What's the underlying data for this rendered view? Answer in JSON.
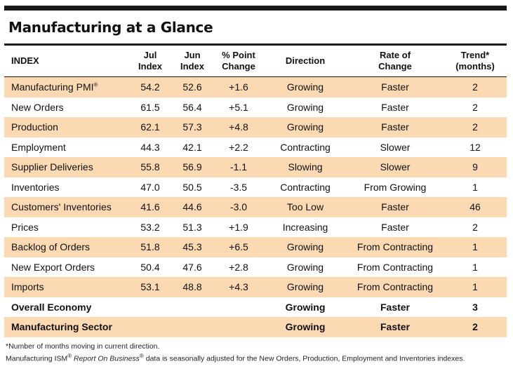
{
  "title": "Manufacturing at a Glance",
  "headers": {
    "index": "INDEX",
    "jul_1": "Jul",
    "jul_2": "Index",
    "jun_1": "Jun",
    "jun_2": "Index",
    "pct_1": "% Point",
    "pct_2": "Change",
    "direction": "Direction",
    "rate_1": "Rate of",
    "rate_2": "Change",
    "trend_1": "Trend*",
    "trend_2": "(months)"
  },
  "rows": [
    {
      "index": "Manufacturing PMI",
      "sup": "®",
      "jul": "54.2",
      "jun": "52.6",
      "change": "+1.6",
      "direction": "Growing",
      "rate": "Faster",
      "trend": "2"
    },
    {
      "index": "New Orders",
      "sup": "",
      "jul": "61.5",
      "jun": "56.4",
      "change": "+5.1",
      "direction": "Growing",
      "rate": "Faster",
      "trend": "2"
    },
    {
      "index": "Production",
      "sup": "",
      "jul": "62.1",
      "jun": "57.3",
      "change": "+4.8",
      "direction": "Growing",
      "rate": "Faster",
      "trend": "2"
    },
    {
      "index": "Employment",
      "sup": "",
      "jul": "44.3",
      "jun": "42.1",
      "change": "+2.2",
      "direction": "Contracting",
      "rate": "Slower",
      "trend": "12"
    },
    {
      "index": "Supplier Deliveries",
      "sup": "",
      "jul": "55.8",
      "jun": "56.9",
      "change": "-1.1",
      "direction": "Slowing",
      "rate": "Slower",
      "trend": "9"
    },
    {
      "index": "Inventories",
      "sup": "",
      "jul": "47.0",
      "jun": "50.5",
      "change": "-3.5",
      "direction": "Contracting",
      "rate": "From Growing",
      "trend": "1"
    },
    {
      "index": "Customers' Inventories",
      "sup": "",
      "jul": "41.6",
      "jun": "44.6",
      "change": "-3.0",
      "direction": "Too Low",
      "rate": "Faster",
      "trend": "46"
    },
    {
      "index": "Prices",
      "sup": "",
      "jul": "53.2",
      "jun": "51.3",
      "change": "+1.9",
      "direction": "Increasing",
      "rate": "Faster",
      "trend": "2"
    },
    {
      "index": "Backlog of Orders",
      "sup": "",
      "jul": "51.8",
      "jun": "45.3",
      "change": "+6.5",
      "direction": "Growing",
      "rate": "From Contracting",
      "trend": "1"
    },
    {
      "index": "New Export Orders",
      "sup": "",
      "jul": "50.4",
      "jun": "47.6",
      "change": "+2.8",
      "direction": "Growing",
      "rate": "From Contracting",
      "trend": "1"
    },
    {
      "index": "Imports",
      "sup": "",
      "jul": "53.1",
      "jun": "48.8",
      "change": "+4.3",
      "direction": "Growing",
      "rate": "From Contracting",
      "trend": "1"
    },
    {
      "index": "Overall Economy",
      "sup": "",
      "jul": "",
      "jun": "",
      "change": "",
      "direction": "Growing",
      "rate": "Faster",
      "trend": "3"
    },
    {
      "index": "Manufacturing Sector",
      "sup": "",
      "jul": "",
      "jun": "",
      "change": "",
      "direction": "Growing",
      "rate": "Faster",
      "trend": "2"
    }
  ],
  "footnotes": {
    "line1": "*Number of months moving in current direction.",
    "line2_a": "Manufacturing ISM",
    "line2_sup1": "®",
    "line2_b": " Report On Business",
    "line2_sup2": "®",
    "line2_c": " data is seasonally adjusted for the New Orders, Production, Employment and Inventories indexes."
  },
  "colors": {
    "shade": "#fbd9b3",
    "rule": "#1a1a1a"
  }
}
